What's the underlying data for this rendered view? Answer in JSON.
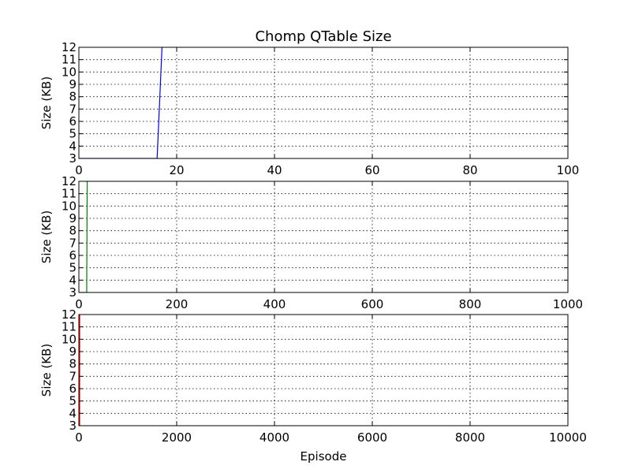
{
  "chart_data": [
    {
      "type": "line",
      "title": "Chomp QTable Size",
      "ylabel": "Size (KB)",
      "xlabel": "",
      "xlim": [
        0,
        100
      ],
      "ylim": [
        3,
        12
      ],
      "xticks": [
        "0",
        "20",
        "40",
        "60",
        "80",
        "100"
      ],
      "yticks": [
        "3",
        "4",
        "5",
        "6",
        "7",
        "8",
        "9",
        "10",
        "11",
        "12"
      ],
      "grid": true,
      "series": [
        {
          "color": "#0000ff",
          "x": [
            0,
            16,
            17
          ],
          "y": [
            3,
            3,
            12
          ]
        }
      ]
    },
    {
      "type": "line",
      "title": "",
      "ylabel": "Size (KB)",
      "xlabel": "",
      "xlim": [
        0,
        1000
      ],
      "ylim": [
        3,
        12
      ],
      "xticks": [
        "0",
        "200",
        "400",
        "600",
        "800",
        "1000"
      ],
      "yticks": [
        "3",
        "4",
        "5",
        "6",
        "7",
        "8",
        "9",
        "10",
        "11",
        "12"
      ],
      "grid": true,
      "series": [
        {
          "color": "#008000",
          "x": [
            0,
            16,
            17
          ],
          "y": [
            3,
            3,
            12
          ]
        }
      ]
    },
    {
      "type": "line",
      "title": "",
      "ylabel": "Size (KB)",
      "xlabel": "Episode",
      "xlim": [
        0,
        10000
      ],
      "ylim": [
        3,
        12
      ],
      "xticks": [
        "0",
        "2000",
        "4000",
        "6000",
        "8000",
        "10000"
      ],
      "yticks": [
        "3",
        "4",
        "5",
        "6",
        "7",
        "8",
        "9",
        "10",
        "11",
        "12"
      ],
      "grid": true,
      "series": [
        {
          "color": "#ff0000",
          "x": [
            0,
            16,
            17
          ],
          "y": [
            3,
            3,
            12
          ]
        }
      ]
    }
  ]
}
